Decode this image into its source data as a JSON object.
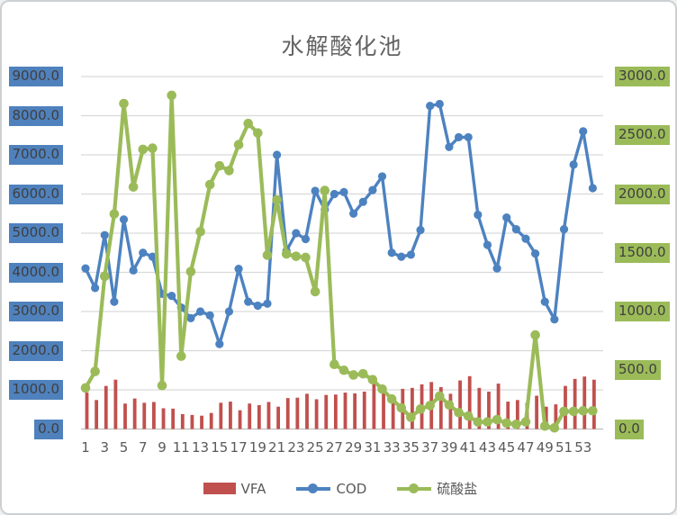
{
  "window": {
    "background": "#ffffff",
    "border_color": "#cdd0d3"
  },
  "chart_data": {
    "type": "combo-bar-line",
    "title": "水解酸化池",
    "grid_on": true,
    "gridline_color": "#d9d9d9",
    "axis_line_color": "#bfbfbf",
    "categories": [
      1,
      2,
      3,
      4,
      5,
      6,
      7,
      8,
      9,
      10,
      11,
      12,
      13,
      14,
      15,
      16,
      17,
      18,
      19,
      20,
      21,
      22,
      23,
      24,
      25,
      26,
      27,
      28,
      29,
      30,
      31,
      32,
      33,
      34,
      35,
      36,
      37,
      38,
      39,
      40,
      41,
      42,
      43,
      44,
      45,
      46,
      47,
      48,
      49,
      50,
      51,
      52,
      53,
      54
    ],
    "x_tick_labels": [
      "1",
      "3",
      "5",
      "7",
      "9",
      "11",
      "13",
      "15",
      "17",
      "19",
      "21",
      "23",
      "25",
      "27",
      "29",
      "31",
      "33",
      "35",
      "37",
      "39",
      "41",
      "43",
      "45",
      "47",
      "49",
      "51",
      "53"
    ],
    "left_axis": {
      "min": 0,
      "max": 9000,
      "step": 1000,
      "tick_labels": [
        "9000.0",
        "8000.0",
        "7000.0",
        "6000.0",
        "5000.0",
        "4000.0",
        "3000.0",
        "2000.0",
        "1000.0",
        "0.0"
      ],
      "label_bg": "#4f81bd",
      "label_text_color": "#3f3f3f"
    },
    "right_axis": {
      "min": 0,
      "max": 3000,
      "step": 500,
      "tick_labels": [
        "3000.0",
        "2500.0",
        "2000.0",
        "1500.0",
        "1000.0",
        "500.0",
        "0.0"
      ],
      "label_bg": "#9bbb59",
      "label_text_color": "#3f3f3f"
    },
    "series": [
      {
        "name": "VFA",
        "type": "bar",
        "axis": "left",
        "color": "#c0504d",
        "values": [
          930,
          740,
          1100,
          1260,
          650,
          780,
          670,
          690,
          530,
          520,
          380,
          360,
          340,
          410,
          670,
          700,
          480,
          650,
          610,
          690,
          570,
          790,
          800,
          900,
          760,
          870,
          880,
          930,
          910,
          955,
          1240,
          910,
          860,
          1025,
          1050,
          1140,
          1200,
          1070,
          900,
          1240,
          1350,
          1050,
          955,
          1160,
          700,
          740,
          670,
          850,
          570,
          630,
          1100,
          1280,
          1340,
          1260
        ]
      },
      {
        "name": "COD",
        "type": "line",
        "axis": "left",
        "color": "#4d82c0",
        "values": [
          4100,
          3600,
          4950,
          3250,
          5350,
          4050,
          4500,
          4400,
          3450,
          3400,
          3100,
          2830,
          3000,
          2900,
          2170,
          3000,
          4090,
          3250,
          3150,
          3200,
          7000,
          4550,
          5000,
          4850,
          6080,
          5600,
          6000,
          6050,
          5500,
          5800,
          6100,
          6450,
          4500,
          4400,
          4450,
          5080,
          8250,
          8300,
          7200,
          7450,
          7450,
          5470,
          4700,
          4100,
          5400,
          5100,
          4860,
          4480,
          3250,
          2800,
          5100,
          6750,
          7600,
          6150
        ]
      },
      {
        "name": "硫酸盐",
        "type": "line",
        "axis": "right",
        "color": "#9bbb59",
        "values": [
          350,
          490,
          1300,
          1830,
          2770,
          2060,
          2380,
          2390,
          370,
          2840,
          620,
          1340,
          1680,
          2080,
          2240,
          2200,
          2420,
          2600,
          2520,
          1480,
          1950,
          1490,
          1470,
          1460,
          1170,
          2030,
          550,
          500,
          460,
          470,
          420,
          340,
          255,
          180,
          100,
          170,
          200,
          280,
          205,
          140,
          110,
          60,
          60,
          80,
          50,
          40,
          60,
          800,
          25,
          10,
          150,
          150,
          155,
          155
        ]
      }
    ],
    "legend": {
      "position": "bottom",
      "entries": [
        "VFA",
        "COD",
        "硫酸盐"
      ]
    },
    "title_color": "#636363",
    "tick_text_color": "#595959"
  }
}
